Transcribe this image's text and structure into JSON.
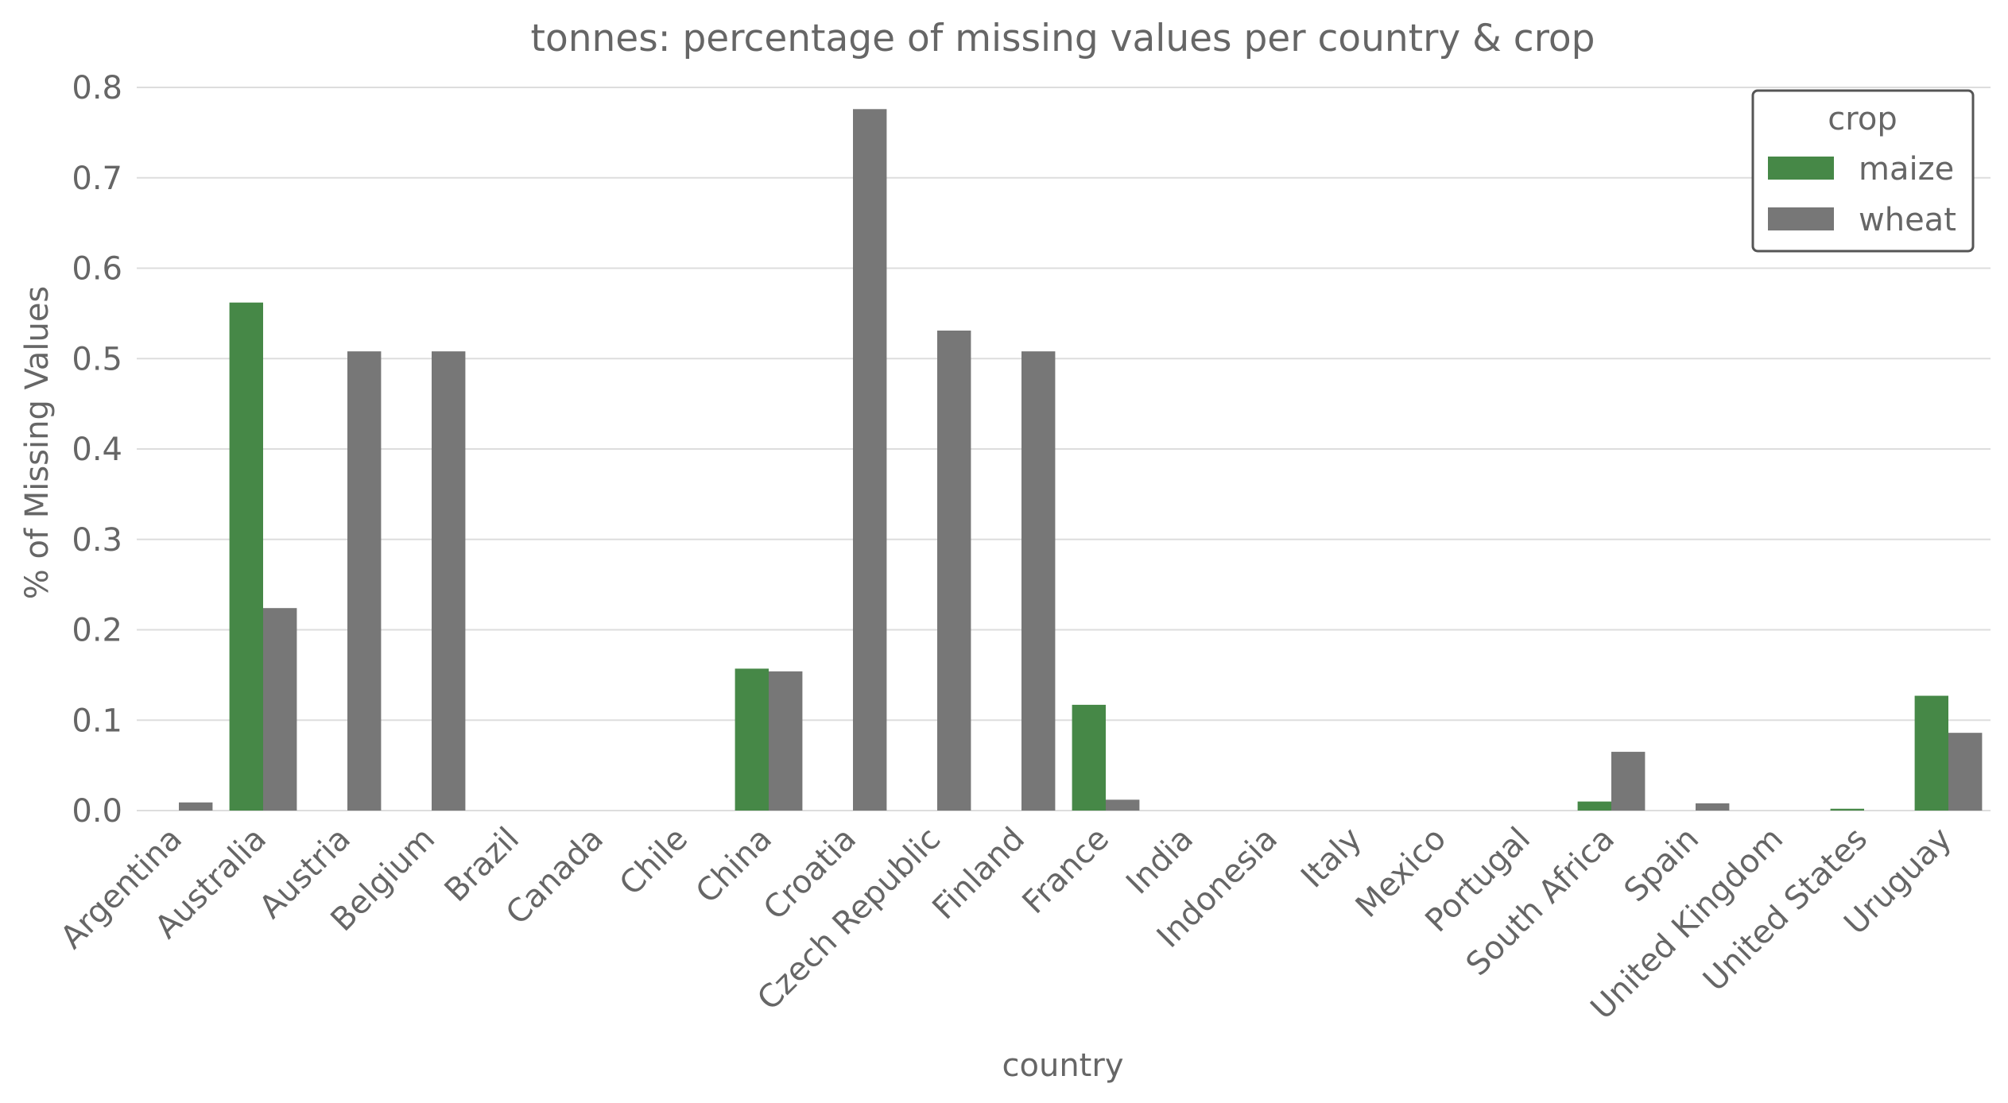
{
  "chart_data": {
    "type": "bar",
    "title": "tonnes: percentage of missing values per country & crop",
    "xlabel": "country",
    "ylabel": "% of Missing Values",
    "ylim": [
      0,
      0.8
    ],
    "yticks": [
      "0.0",
      "0.1",
      "0.2",
      "0.3",
      "0.4",
      "0.5",
      "0.6",
      "0.7",
      "0.8"
    ],
    "grid": "horizontal",
    "legend_position": "top-right",
    "legend_title": "crop",
    "categories": [
      "Argentina",
      "Australia",
      "Austria",
      "Belgium",
      "Brazil",
      "Canada",
      "Chile",
      "China",
      "Croatia",
      "Czech Republic",
      "Finland",
      "France",
      "India",
      "Indonesia",
      "Italy",
      "Mexico",
      "Portugal",
      "South Africa",
      "Spain",
      "United Kingdom",
      "United States",
      "Uruguay"
    ],
    "series": [
      {
        "name": "maize",
        "color": "#468847",
        "values": [
          0,
          0.562,
          0,
          0,
          0,
          0,
          0,
          0.157,
          0,
          0,
          0,
          0.117,
          0,
          0,
          0,
          0,
          0,
          0.01,
          0,
          0,
          0.002,
          0.127
        ]
      },
      {
        "name": "wheat",
        "color": "#777777",
        "values": [
          0.009,
          0.224,
          0.508,
          0.508,
          0,
          0,
          0,
          0.154,
          0.776,
          0.531,
          0.508,
          0.012,
          0,
          0,
          0,
          0,
          0,
          0.065,
          0.008,
          0,
          0,
          0.086
        ]
      }
    ]
  }
}
